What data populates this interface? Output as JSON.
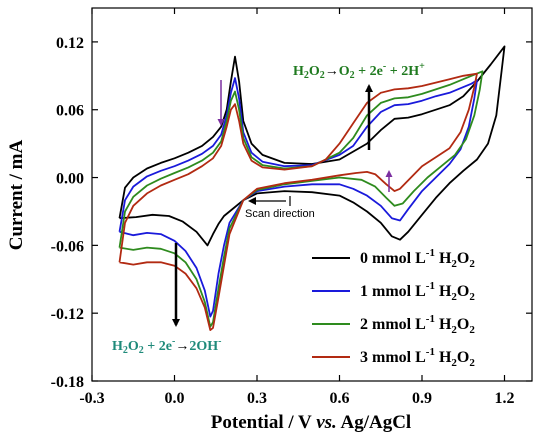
{
  "chart_data": {
    "type": "line",
    "xlabel": {
      "pre": "Potential / V ",
      "italic": "vs.",
      "post": " Ag/AgCl"
    },
    "ylabel": "Current / mA",
    "xlim": [
      -0.3,
      1.3
    ],
    "ylim": [
      -0.18,
      0.15
    ],
    "x_ticks": [
      "-0.3",
      "0.0",
      "0.3",
      "0.6",
      "0.9",
      "1.2"
    ],
    "y_ticks": [
      "-0.18",
      "-0.12",
      "-0.06",
      "0.00",
      "0.06",
      "0.12"
    ],
    "legend_position": "bottom-right",
    "series": [
      {
        "name": "0 mmol L-1 H2O2",
        "legend": {
          "pre": "0 mmol L",
          "sup": "-1",
          "main": " H",
          "sub1": "2",
          "o": "O",
          "sub2": "2"
        },
        "color": "#000000",
        "points": [
          [
            -0.2,
            -0.036
          ],
          [
            -0.18,
            -0.009
          ],
          [
            -0.15,
            0.0
          ],
          [
            -0.1,
            0.008
          ],
          [
            -0.05,
            0.013
          ],
          [
            0.0,
            0.017
          ],
          [
            0.05,
            0.022
          ],
          [
            0.1,
            0.028
          ],
          [
            0.14,
            0.036
          ],
          [
            0.17,
            0.045
          ],
          [
            0.19,
            0.06
          ],
          [
            0.205,
            0.085
          ],
          [
            0.22,
            0.107
          ],
          [
            0.235,
            0.085
          ],
          [
            0.25,
            0.05
          ],
          [
            0.28,
            0.03
          ],
          [
            0.32,
            0.02
          ],
          [
            0.4,
            0.013
          ],
          [
            0.5,
            0.012
          ],
          [
            0.6,
            0.016
          ],
          [
            0.7,
            0.03
          ],
          [
            0.75,
            0.042
          ],
          [
            0.8,
            0.052
          ],
          [
            0.85,
            0.053
          ],
          [
            0.9,
            0.056
          ],
          [
            0.95,
            0.06
          ],
          [
            1.0,
            0.064
          ],
          [
            1.05,
            0.072
          ],
          [
            1.1,
            0.085
          ],
          [
            1.15,
            0.1
          ],
          [
            1.2,
            0.116
          ],
          [
            1.19,
            0.095
          ],
          [
            1.17,
            0.055
          ],
          [
            1.14,
            0.03
          ],
          [
            1.1,
            0.016
          ],
          [
            1.05,
            0.006
          ],
          [
            1.0,
            -0.005
          ],
          [
            0.95,
            -0.018
          ],
          [
            0.9,
            -0.033
          ],
          [
            0.85,
            -0.048
          ],
          [
            0.82,
            -0.055
          ],
          [
            0.79,
            -0.052
          ],
          [
            0.75,
            -0.04
          ],
          [
            0.7,
            -0.03
          ],
          [
            0.65,
            -0.022
          ],
          [
            0.6,
            -0.016
          ],
          [
            0.5,
            -0.013
          ],
          [
            0.4,
            -0.012
          ],
          [
            0.3,
            -0.014
          ],
          [
            0.25,
            -0.02
          ],
          [
            0.2,
            -0.03
          ],
          [
            0.18,
            -0.034
          ],
          [
            0.16,
            -0.041
          ],
          [
            0.14,
            -0.05
          ],
          [
            0.12,
            -0.06
          ],
          [
            0.08,
            -0.048
          ],
          [
            0.03,
            -0.039
          ],
          [
            -0.02,
            -0.034
          ],
          [
            -0.08,
            -0.033
          ],
          [
            -0.14,
            -0.035
          ],
          [
            -0.2,
            -0.036
          ]
        ]
      },
      {
        "name": "1 mmol L-1 H2O2",
        "legend": {
          "pre": "1 mmol L",
          "sup": "-1",
          "main": " H",
          "sub1": "2",
          "o": "O",
          "sub2": "2"
        },
        "color": "#1a1adb",
        "points": [
          [
            -0.2,
            -0.048
          ],
          [
            -0.18,
            -0.02
          ],
          [
            -0.15,
            -0.008
          ],
          [
            -0.1,
            0.001
          ],
          [
            -0.05,
            0.006
          ],
          [
            0.0,
            0.01
          ],
          [
            0.05,
            0.015
          ],
          [
            0.1,
            0.021
          ],
          [
            0.14,
            0.028
          ],
          [
            0.17,
            0.038
          ],
          [
            0.19,
            0.055
          ],
          [
            0.205,
            0.075
          ],
          [
            0.22,
            0.088
          ],
          [
            0.235,
            0.07
          ],
          [
            0.25,
            0.04
          ],
          [
            0.28,
            0.022
          ],
          [
            0.32,
            0.014
          ],
          [
            0.4,
            0.01
          ],
          [
            0.5,
            0.011
          ],
          [
            0.6,
            0.02
          ],
          [
            0.65,
            0.028
          ],
          [
            0.7,
            0.045
          ],
          [
            0.75,
            0.058
          ],
          [
            0.8,
            0.064
          ],
          [
            0.85,
            0.065
          ],
          [
            0.9,
            0.068
          ],
          [
            0.95,
            0.072
          ],
          [
            1.0,
            0.075
          ],
          [
            1.05,
            0.08
          ],
          [
            1.08,
            0.083
          ],
          [
            1.1,
            0.086
          ],
          [
            1.09,
            0.07
          ],
          [
            1.07,
            0.045
          ],
          [
            1.04,
            0.025
          ],
          [
            1.0,
            0.012
          ],
          [
            0.95,
            0.0
          ],
          [
            0.9,
            -0.012
          ],
          [
            0.85,
            -0.028
          ],
          [
            0.82,
            -0.038
          ],
          [
            0.79,
            -0.036
          ],
          [
            0.75,
            -0.025
          ],
          [
            0.7,
            -0.016
          ],
          [
            0.65,
            -0.01
          ],
          [
            0.6,
            -0.006
          ],
          [
            0.5,
            -0.006
          ],
          [
            0.4,
            -0.008
          ],
          [
            0.3,
            -0.012
          ],
          [
            0.25,
            -0.02
          ],
          [
            0.2,
            -0.04
          ],
          [
            0.18,
            -0.06
          ],
          [
            0.16,
            -0.085
          ],
          [
            0.14,
            -0.118
          ],
          [
            0.13,
            -0.123
          ],
          [
            0.11,
            -0.1
          ],
          [
            0.08,
            -0.08
          ],
          [
            0.04,
            -0.065
          ],
          [
            0.0,
            -0.056
          ],
          [
            -0.05,
            -0.05
          ],
          [
            -0.1,
            -0.049
          ],
          [
            -0.15,
            -0.051
          ],
          [
            -0.2,
            -0.048
          ]
        ]
      },
      {
        "name": "2 mmol L-1 H2O2",
        "legend": {
          "pre": "2 mmol L",
          "sup": "-1",
          "main": " H",
          "sub1": "2",
          "o": "O",
          "sub2": "2"
        },
        "color": "#2e8b1e",
        "points": [
          [
            -0.2,
            -0.062
          ],
          [
            -0.18,
            -0.03
          ],
          [
            -0.15,
            -0.017
          ],
          [
            -0.1,
            -0.007
          ],
          [
            -0.05,
            -0.001
          ],
          [
            0.0,
            0.004
          ],
          [
            0.05,
            0.009
          ],
          [
            0.1,
            0.015
          ],
          [
            0.14,
            0.022
          ],
          [
            0.17,
            0.032
          ],
          [
            0.19,
            0.05
          ],
          [
            0.205,
            0.068
          ],
          [
            0.22,
            0.076
          ],
          [
            0.235,
            0.06
          ],
          [
            0.25,
            0.035
          ],
          [
            0.28,
            0.018
          ],
          [
            0.32,
            0.011
          ],
          [
            0.4,
            0.008
          ],
          [
            0.5,
            0.01
          ],
          [
            0.6,
            0.022
          ],
          [
            0.65,
            0.035
          ],
          [
            0.7,
            0.055
          ],
          [
            0.75,
            0.066
          ],
          [
            0.8,
            0.07
          ],
          [
            0.85,
            0.071
          ],
          [
            0.9,
            0.074
          ],
          [
            0.95,
            0.078
          ],
          [
            1.0,
            0.082
          ],
          [
            1.05,
            0.087
          ],
          [
            1.1,
            0.092
          ],
          [
            1.12,
            0.094
          ],
          [
            1.11,
            0.078
          ],
          [
            1.09,
            0.055
          ],
          [
            1.06,
            0.034
          ],
          [
            1.02,
            0.02
          ],
          [
            0.97,
            0.01
          ],
          [
            0.92,
            0.0
          ],
          [
            0.87,
            -0.012
          ],
          [
            0.83,
            -0.023
          ],
          [
            0.8,
            -0.025
          ],
          [
            0.77,
            -0.018
          ],
          [
            0.73,
            -0.008
          ],
          [
            0.68,
            -0.002
          ],
          [
            0.6,
            0.0
          ],
          [
            0.5,
            -0.003
          ],
          [
            0.4,
            -0.006
          ],
          [
            0.3,
            -0.011
          ],
          [
            0.25,
            -0.02
          ],
          [
            0.2,
            -0.045
          ],
          [
            0.18,
            -0.07
          ],
          [
            0.16,
            -0.098
          ],
          [
            0.14,
            -0.128
          ],
          [
            0.13,
            -0.132
          ],
          [
            0.11,
            -0.11
          ],
          [
            0.08,
            -0.09
          ],
          [
            0.04,
            -0.075
          ],
          [
            0.0,
            -0.067
          ],
          [
            -0.05,
            -0.063
          ],
          [
            -0.1,
            -0.062
          ],
          [
            -0.15,
            -0.064
          ],
          [
            -0.2,
            -0.062
          ]
        ]
      },
      {
        "name": "3 mmol L-1 H2O2",
        "legend": {
          "pre": "3 mmol L",
          "sup": "-1",
          "main": " H",
          "sub1": "2",
          "o": "O",
          "sub2": "2"
        },
        "color": "#b22a12",
        "points": [
          [
            -0.2,
            -0.075
          ],
          [
            -0.18,
            -0.04
          ],
          [
            -0.15,
            -0.025
          ],
          [
            -0.1,
            -0.014
          ],
          [
            -0.05,
            -0.007
          ],
          [
            0.0,
            -0.002
          ],
          [
            0.05,
            0.003
          ],
          [
            0.1,
            0.01
          ],
          [
            0.14,
            0.017
          ],
          [
            0.17,
            0.028
          ],
          [
            0.19,
            0.045
          ],
          [
            0.205,
            0.06
          ],
          [
            0.22,
            0.065
          ],
          [
            0.235,
            0.05
          ],
          [
            0.25,
            0.03
          ],
          [
            0.28,
            0.015
          ],
          [
            0.32,
            0.009
          ],
          [
            0.4,
            0.007
          ],
          [
            0.5,
            0.01
          ],
          [
            0.55,
            0.016
          ],
          [
            0.6,
            0.03
          ],
          [
            0.65,
            0.048
          ],
          [
            0.7,
            0.066
          ],
          [
            0.75,
            0.075
          ],
          [
            0.8,
            0.078
          ],
          [
            0.85,
            0.079
          ],
          [
            0.9,
            0.081
          ],
          [
            0.95,
            0.084
          ],
          [
            1.0,
            0.087
          ],
          [
            1.05,
            0.09
          ],
          [
            1.1,
            0.092
          ],
          [
            1.09,
            0.08
          ],
          [
            1.07,
            0.06
          ],
          [
            1.04,
            0.04
          ],
          [
            1.0,
            0.026
          ],
          [
            0.95,
            0.018
          ],
          [
            0.9,
            0.01
          ],
          [
            0.86,
            0.0
          ],
          [
            0.82,
            -0.01
          ],
          [
            0.8,
            -0.012
          ],
          [
            0.77,
            -0.006
          ],
          [
            0.73,
            0.003
          ],
          [
            0.7,
            0.005
          ],
          [
            0.66,
            0.004
          ],
          [
            0.6,
            0.002
          ],
          [
            0.5,
            -0.002
          ],
          [
            0.4,
            -0.005
          ],
          [
            0.3,
            -0.01
          ],
          [
            0.25,
            -0.02
          ],
          [
            0.2,
            -0.05
          ],
          [
            0.18,
            -0.078
          ],
          [
            0.16,
            -0.106
          ],
          [
            0.14,
            -0.133
          ],
          [
            0.13,
            -0.135
          ],
          [
            0.11,
            -0.115
          ],
          [
            0.08,
            -0.098
          ],
          [
            0.04,
            -0.085
          ],
          [
            0.0,
            -0.078
          ],
          [
            -0.05,
            -0.075
          ],
          [
            -0.1,
            -0.075
          ],
          [
            -0.15,
            -0.077
          ],
          [
            -0.2,
            -0.075
          ]
        ]
      }
    ],
    "annotations": {
      "oxidation": {
        "H": "H",
        "s1": "2",
        "O": "O",
        "s2": "2",
        "arrow": "→",
        "rhs_O": "O",
        "s3": "2",
        "rest": " + 2e",
        "e_sup": "-",
        "tail": " + 2H",
        "h_sup": "+",
        "color": "#1f7a1f"
      },
      "reduction": {
        "H": "H",
        "s1": "2",
        "O": "O",
        "s2": "2",
        "rest": " + 2e",
        "e_sup": "-",
        "arrow": "→",
        "rhs": "2OH",
        "oh_sup": "-",
        "color": "#1f8a7a"
      },
      "scan_direction": "Scan direction"
    }
  }
}
